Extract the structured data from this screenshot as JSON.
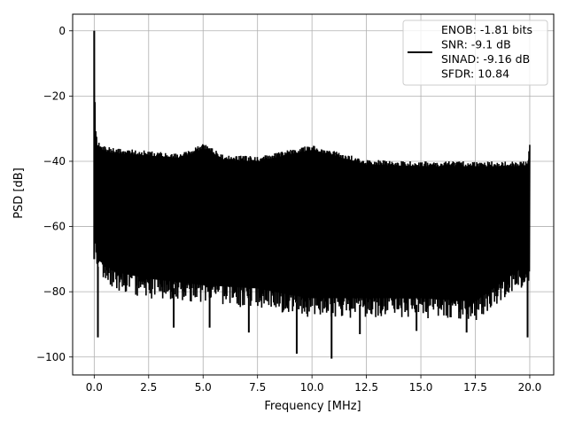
{
  "chart_data": {
    "type": "line",
    "title": "",
    "xlabel": "Frequency [MHz]",
    "ylabel": "PSD [dB]",
    "xlim": [
      -0.99,
      21.1
    ],
    "ylim": [
      -105.5,
      5.1
    ],
    "xticks": [
      0.0,
      2.5,
      5.0,
      7.5,
      10.0,
      12.5,
      15.0,
      17.5,
      20.0
    ],
    "xtick_labels": [
      "0.0",
      "2.5",
      "5.0",
      "7.5",
      "10.0",
      "12.5",
      "15.0",
      "17.5",
      "20.0"
    ],
    "yticks": [
      0,
      -20,
      -40,
      -60,
      -80,
      -100
    ],
    "ytick_labels": [
      "0",
      "−20",
      "−40",
      "−60",
      "−80",
      "−100"
    ],
    "grid": true,
    "legend_position": "top-right",
    "legend_lines": [
      "ENOB: -1.81 bits",
      "SNR: -9.1 dB",
      "SINAD: -9.16 dB",
      "SFDR: 10.84"
    ],
    "series": [
      {
        "color": "#000000",
        "x_range": [
          0.0,
          20.0
        ],
        "dc_peak": 0.0,
        "upper_envelope": [
          [
            0.0,
            0.0
          ],
          [
            0.05,
            -28
          ],
          [
            0.15,
            -34
          ],
          [
            0.5,
            -35.5
          ],
          [
            1.0,
            -36
          ],
          [
            2.0,
            -36.5
          ],
          [
            3.0,
            -37
          ],
          [
            4.0,
            -37.5
          ],
          [
            5.0,
            -34.5
          ],
          [
            6.0,
            -38
          ],
          [
            7.5,
            -38.5
          ],
          [
            10.0,
            -35
          ],
          [
            12.5,
            -39.5
          ],
          [
            15.0,
            -40
          ],
          [
            17.5,
            -40
          ],
          [
            19.9,
            -40
          ],
          [
            20.0,
            -33.5
          ]
        ],
        "lower_envelope": [
          [
            0.0,
            -65
          ],
          [
            0.1,
            -76
          ],
          [
            1.0,
            -80
          ],
          [
            2.5,
            -82
          ],
          [
            5.0,
            -84
          ],
          [
            7.5,
            -85
          ],
          [
            9.0,
            -87
          ],
          [
            10.0,
            -88
          ],
          [
            12.5,
            -88
          ],
          [
            15.0,
            -88
          ],
          [
            17.5,
            -89
          ],
          [
            20.0,
            -77
          ]
        ],
        "notable_minima": [
          [
            0.17,
            -94
          ],
          [
            3.65,
            -91
          ],
          [
            5.3,
            -91
          ],
          [
            7.1,
            -92.5
          ],
          [
            9.3,
            -99
          ],
          [
            10.9,
            -100.5
          ],
          [
            12.2,
            -93
          ],
          [
            14.8,
            -92
          ],
          [
            17.1,
            -92.5
          ],
          [
            19.9,
            -94
          ]
        ]
      }
    ]
  }
}
